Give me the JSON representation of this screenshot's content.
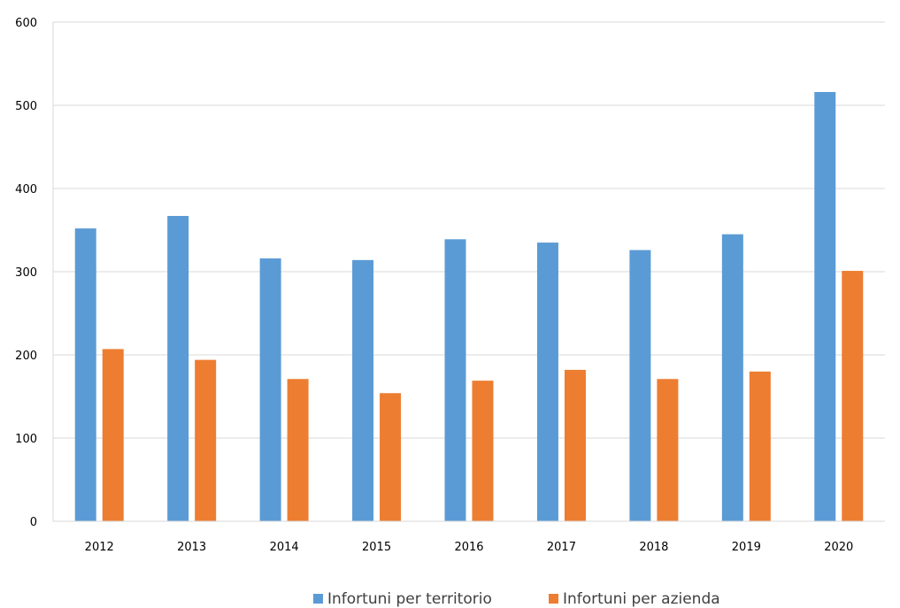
{
  "chart_data": {
    "type": "bar",
    "title": "",
    "xlabel": "",
    "ylabel": "",
    "categories": [
      "2012",
      "2013",
      "2014",
      "2015",
      "2016",
      "2017",
      "2018",
      "2019",
      "2020"
    ],
    "series": [
      {
        "name": "Infortuni per territorio",
        "color": "#5b9bd5",
        "values": [
          352,
          367,
          316,
          314,
          339,
          335,
          326,
          345,
          516
        ]
      },
      {
        "name": "Infortuni per azienda",
        "color": "#ed7d31",
        "values": [
          207,
          194,
          171,
          154,
          169,
          182,
          171,
          180,
          301
        ]
      }
    ],
    "ylim": [
      0,
      600
    ],
    "yticks": [
      0,
      100,
      200,
      300,
      400,
      500,
      600
    ],
    "yticks_labels": [
      "0",
      "100",
      "200",
      "300",
      "400",
      "500",
      "600"
    ],
    "grid": true,
    "legend_position": "bottom"
  }
}
